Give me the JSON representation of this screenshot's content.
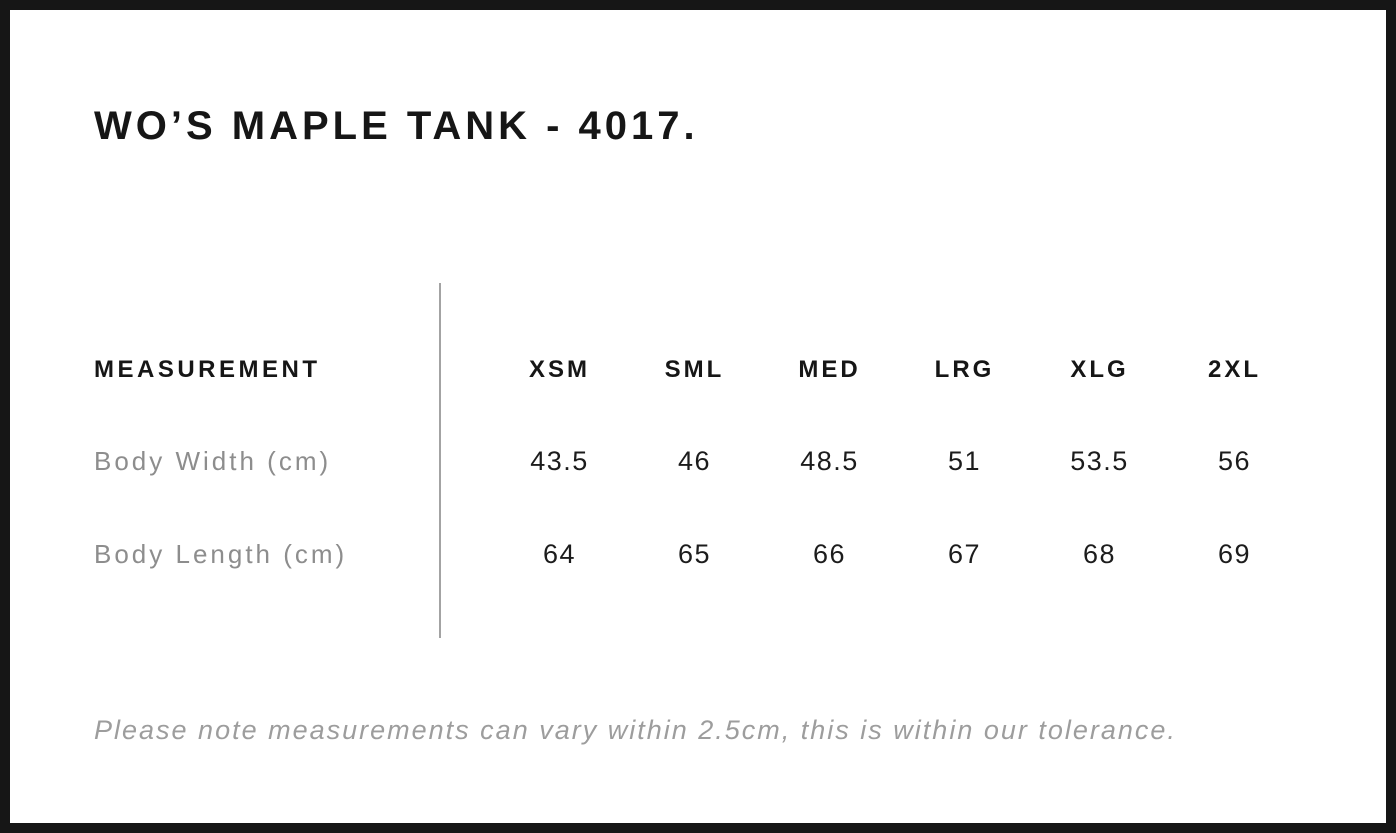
{
  "chart_data": {
    "type": "table",
    "title": "WO’S MAPLE TANK - 4017.",
    "columns": [
      "MEASUREMENT",
      "XSM",
      "SML",
      "MED",
      "LRG",
      "XLG",
      "2XL"
    ],
    "rows": [
      [
        "Body Width (cm)",
        43.5,
        46,
        48.5,
        51,
        53.5,
        56
      ],
      [
        "Body Length (cm)",
        64,
        65,
        66,
        67,
        68,
        69
      ]
    ],
    "note": "Please note measurements can vary within 2.5cm, this is within our tolerance.",
    "layout": {
      "divider": "vertical line between label column and size columns",
      "grid": "off"
    }
  },
  "colors": {
    "frame_border": "#161616",
    "heading_text": "#161616",
    "value_text": "#1c1c1c",
    "row_label_text": "#8d8d8d",
    "note_text": "#9d9d9d",
    "divider": "#a3a3a3",
    "background": "#ffffff"
  }
}
